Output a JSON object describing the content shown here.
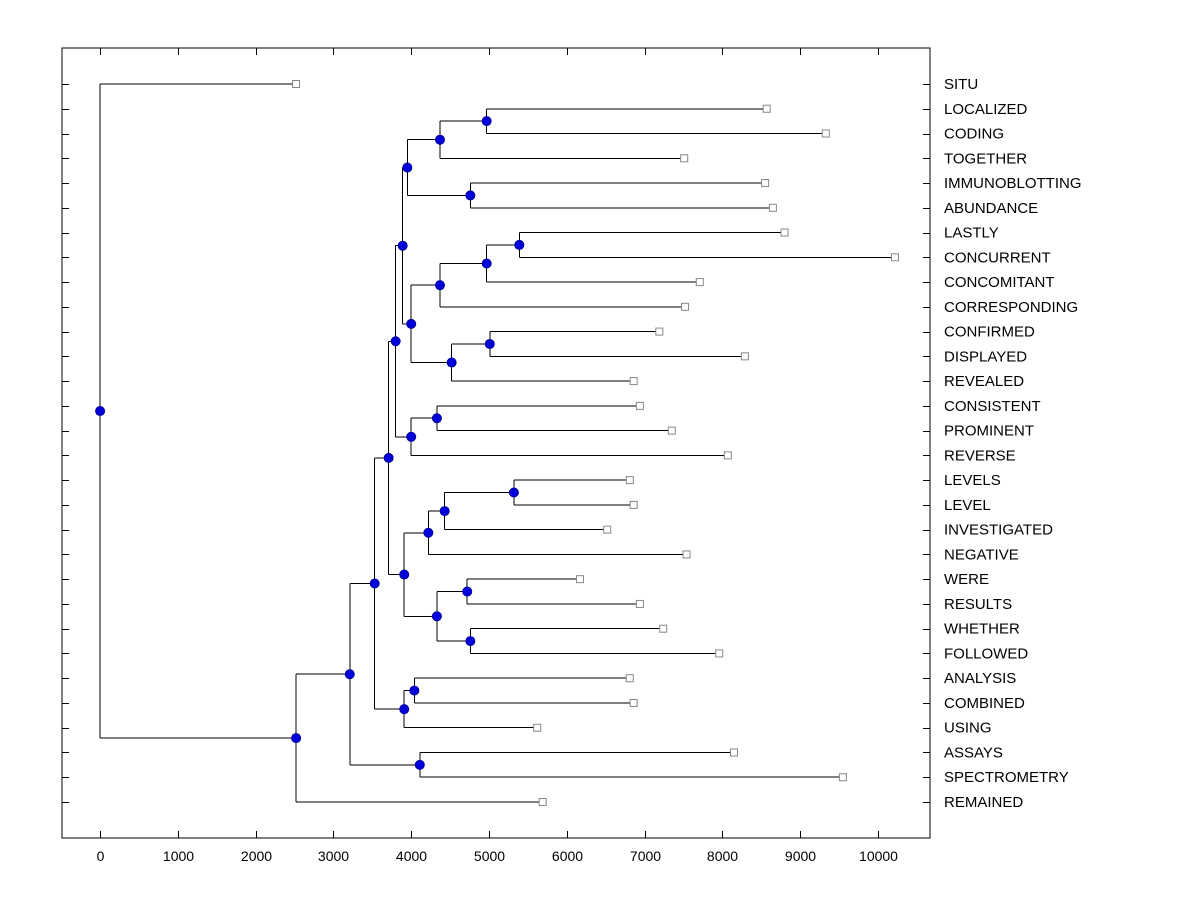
{
  "figure": {
    "background": "#ffffff",
    "colors": {
      "axis": "#000000",
      "branch_line": "#000000",
      "branch_node_fill": "#0000dd",
      "branch_node_edge": "#000099",
      "leaf_marker_fill": "#ffffff",
      "leaf_marker_edge": "#888888",
      "text": "#000000"
    }
  },
  "chart_data": {
    "type": "dendrogram",
    "title": "",
    "xlabel": "",
    "ylabel": "",
    "orientation": "left-to-right",
    "leaf_labels_position": "right",
    "grid": false,
    "xlim": [
      -490,
      10670
    ],
    "x_ticks": [
      0,
      1000,
      2000,
      3000,
      4000,
      5000,
      6000,
      7000,
      8000,
      9000,
      10000
    ],
    "leaf_order": [
      "SITU",
      "LOCALIZED",
      "CODING",
      "TOGETHER",
      "IMMUNOBLOTTING",
      "ABUNDANCE",
      "LASTLY",
      "CONCURRENT",
      "CONCOMITANT",
      "CORRESPONDING",
      "CONFIRMED",
      "DISPLAYED",
      "REVEALED",
      "CONSISTENT",
      "PROMINENT",
      "REVERSE",
      "LEVELS",
      "LEVEL",
      "INVESTIGATED",
      "NEGATIVE",
      "WERE",
      "RESULTS",
      "WHETHER",
      "FOLLOWED",
      "ANALYSIS",
      "COMBINED",
      "USING",
      "ASSAYS",
      "SPECTROMETRY",
      "REMAINED"
    ],
    "tree": {
      "d": 0,
      "children": [
        {
          "name": "SITU",
          "d": 2520
        },
        {
          "d": 2520,
          "children": [
            {
              "d": 3210,
              "children": [
                {
                  "d": 3530,
                  "children": [
                    {
                      "d": 3710,
                      "children": [
                        {
                          "d": 3800,
                          "children": [
                            {
                              "d": 3890,
                              "children": [
                                {
                                  "d": 3950,
                                  "children": [
                                    {
                                      "d": 4370,
                                      "children": [
                                        {
                                          "d": 4970,
                                          "children": [
                                            {
                                              "name": "LOCALIZED",
                                              "d": 8570
                                            },
                                            {
                                              "name": "CODING",
                                              "d": 9330
                                            }
                                          ]
                                        },
                                        {
                                          "name": "TOGETHER",
                                          "d": 7510
                                        }
                                      ]
                                    },
                                    {
                                      "d": 4760,
                                      "children": [
                                        {
                                          "name": "IMMUNOBLOTTING",
                                          "d": 8550
                                        },
                                        {
                                          "name": "ABUNDANCE",
                                          "d": 8650
                                        }
                                      ]
                                    }
                                  ]
                                },
                                {
                                  "d": 4000,
                                  "children": [
                                    {
                                      "d": 4370,
                                      "children": [
                                        {
                                          "d": 4970,
                                          "children": [
                                            {
                                              "d": 5390,
                                              "children": [
                                                {
                                                  "name": "LASTLY",
                                                  "d": 8800
                                                },
                                                {
                                                  "name": "CONCURRENT",
                                                  "d": 10220
                                                }
                                              ]
                                            },
                                            {
                                              "name": "CONCOMITANT",
                                              "d": 7710
                                            }
                                          ]
                                        },
                                        {
                                          "name": "CORRESPONDING",
                                          "d": 7520
                                        }
                                      ]
                                    },
                                    {
                                      "d": 4520,
                                      "children": [
                                        {
                                          "d": 5010,
                                          "children": [
                                            {
                                              "name": "CONFIRMED",
                                              "d": 7190
                                            },
                                            {
                                              "name": "DISPLAYED",
                                              "d": 8290
                                            }
                                          ]
                                        },
                                        {
                                          "name": "REVEALED",
                                          "d": 6860
                                        }
                                      ]
                                    }
                                  ]
                                }
                              ]
                            },
                            {
                              "d": 4000,
                              "children": [
                                {
                                  "d": 4330,
                                  "children": [
                                    {
                                      "name": "CONSISTENT",
                                      "d": 6940
                                    },
                                    {
                                      "name": "PROMINENT",
                                      "d": 7350
                                    }
                                  ]
                                },
                                {
                                  "name": "REVERSE",
                                  "d": 8070
                                }
                              ]
                            }
                          ]
                        },
                        {
                          "d": 3910,
                          "children": [
                            {
                              "d": 4220,
                              "children": [
                                {
                                  "d": 4430,
                                  "children": [
                                    {
                                      "d": 5320,
                                      "children": [
                                        {
                                          "name": "LEVELS",
                                          "d": 6810
                                        },
                                        {
                                          "name": "LEVEL",
                                          "d": 6860
                                        }
                                      ]
                                    },
                                    {
                                      "name": "INVESTIGATED",
                                      "d": 6520
                                    }
                                  ]
                                },
                                {
                                  "name": "NEGATIVE",
                                  "d": 7540
                                }
                              ]
                            },
                            {
                              "d": 4330,
                              "children": [
                                {
                                  "d": 4720,
                                  "children": [
                                    {
                                      "name": "WERE",
                                      "d": 6170
                                    },
                                    {
                                      "name": "RESULTS",
                                      "d": 6940
                                    }
                                  ]
                                },
                                {
                                  "d": 4760,
                                  "children": [
                                    {
                                      "name": "WHETHER",
                                      "d": 7240
                                    },
                                    {
                                      "name": "FOLLOWED",
                                      "d": 7960
                                    }
                                  ]
                                }
                              ]
                            }
                          ]
                        }
                      ]
                    },
                    {
                      "d": 3910,
                      "children": [
                        {
                          "d": 4040,
                          "children": [
                            {
                              "name": "ANALYSIS",
                              "d": 6810
                            },
                            {
                              "name": "COMBINED",
                              "d": 6860
                            }
                          ]
                        },
                        {
                          "name": "USING",
                          "d": 5620
                        }
                      ]
                    }
                  ]
                },
                {
                  "d": 4110,
                  "children": [
                    {
                      "name": "ASSAYS",
                      "d": 8150
                    },
                    {
                      "name": "SPECTROMETRY",
                      "d": 9550
                    }
                  ]
                }
              ]
            },
            {
              "name": "REMAINED",
              "d": 5690
            }
          ]
        }
      ]
    }
  }
}
